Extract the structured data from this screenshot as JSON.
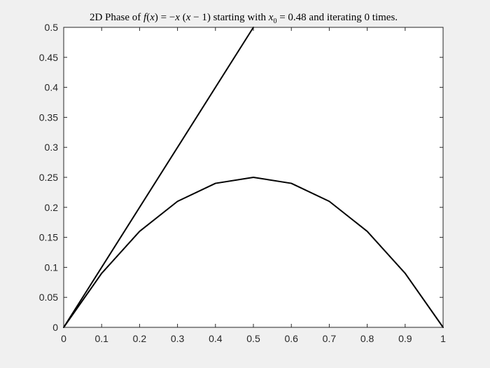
{
  "chart_data": {
    "type": "line",
    "title": {
      "prefix": "2D Phase of ",
      "func": "f",
      "open_paren_1": "(",
      "var_x1": "x",
      "eq": ") = −",
      "var_x2": "x",
      "open_paren_2": " (",
      "var_x3": "x",
      "minus_one": " − 1)",
      "mid_text": " starting with ",
      "var_x0": "x",
      "sub0": "0",
      "eq_value": " = 0.48",
      "suffix": " and iterating 0 times."
    },
    "xlabel": "",
    "ylabel": "",
    "xlim": [
      0,
      1
    ],
    "ylim": [
      0,
      0.5
    ],
    "xticks": [
      "0",
      "0.1",
      "0.2",
      "0.3",
      "0.4",
      "0.5",
      "0.6",
      "0.7",
      "0.8",
      "0.9",
      "1"
    ],
    "yticks": [
      "0",
      "0.05",
      "0.1",
      "0.15",
      "0.2",
      "0.25",
      "0.3",
      "0.35",
      "0.4",
      "0.45",
      "0.5"
    ],
    "grid": false,
    "legend": "none",
    "series": [
      {
        "color": "#000000",
        "x": [
          0,
          0.1,
          0.2,
          0.3,
          0.4,
          0.5,
          0.6,
          0.7,
          0.8,
          0.9,
          1.0
        ],
        "y": [
          0,
          0.09,
          0.16,
          0.21,
          0.24,
          0.25,
          0.24,
          0.21,
          0.16,
          0.09,
          0
        ]
      },
      {
        "color": "#000000",
        "x": [
          0,
          0.5
        ],
        "y": [
          0,
          0.5
        ]
      }
    ]
  }
}
